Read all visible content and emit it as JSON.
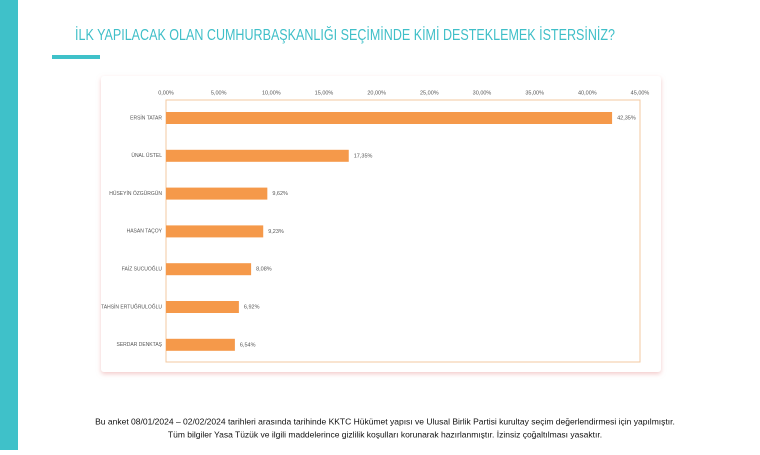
{
  "chart_data": {
    "type": "bar",
    "orientation": "horizontal",
    "title": "İLK YAPILACAK OLAN CUMHURBAŞKANLIĞI SEÇİMİNDE KİMİ DESTEKLEMEK İSTERSİNİZ?",
    "categories": [
      "ERSİN TATAR",
      "ÜNAL ÜSTEL",
      "HÜSEYİN ÖZGÜRGÜN",
      "HASAN TAÇOY",
      "FAİZ SUCUOĞLU",
      "TAHSİN ERTUĞRULOĞLU",
      "SERDAR DENKTAŞ"
    ],
    "values": [
      42.35,
      17.35,
      9.62,
      9.23,
      8.08,
      6.92,
      6.54
    ],
    "value_labels": [
      "42,35%",
      "17,35%",
      "9,62%",
      "9,23%",
      "8,08%",
      "6,92%",
      "6,54%"
    ],
    "color": "#f5994a",
    "xlim": [
      0,
      45
    ],
    "xticks": [
      {
        "value": 0,
        "label": "0,00%"
      },
      {
        "value": 5,
        "label": "5,00%"
      },
      {
        "value": 10,
        "label": "10,00%"
      },
      {
        "value": 15,
        "label": "15,00%"
      },
      {
        "value": 20,
        "label": "20,00%"
      },
      {
        "value": 25,
        "label": "25,00%"
      },
      {
        "value": 30,
        "label": "30,00%"
      },
      {
        "value": 35,
        "label": "35,00%"
      },
      {
        "value": 40,
        "label": "40,00%"
      },
      {
        "value": 45,
        "label": "45,00%"
      }
    ],
    "grid": false
  },
  "footnotes": [
    "Bu anket 08/01/2024 – 02/02/2024 tarihleri arasında tarihinde KKTC Hükümet yapısı ve Ulusal Birlik Partisi kurultay seçim değerlendirmesi için yapılmıştır.",
    "Tüm bilgiler Yasa Tüzük ve ilgili maddelerince gizlilik koşulları korunarak hazırlanmıştır.  İzinsiz çoğaltılması yasaktır."
  ]
}
